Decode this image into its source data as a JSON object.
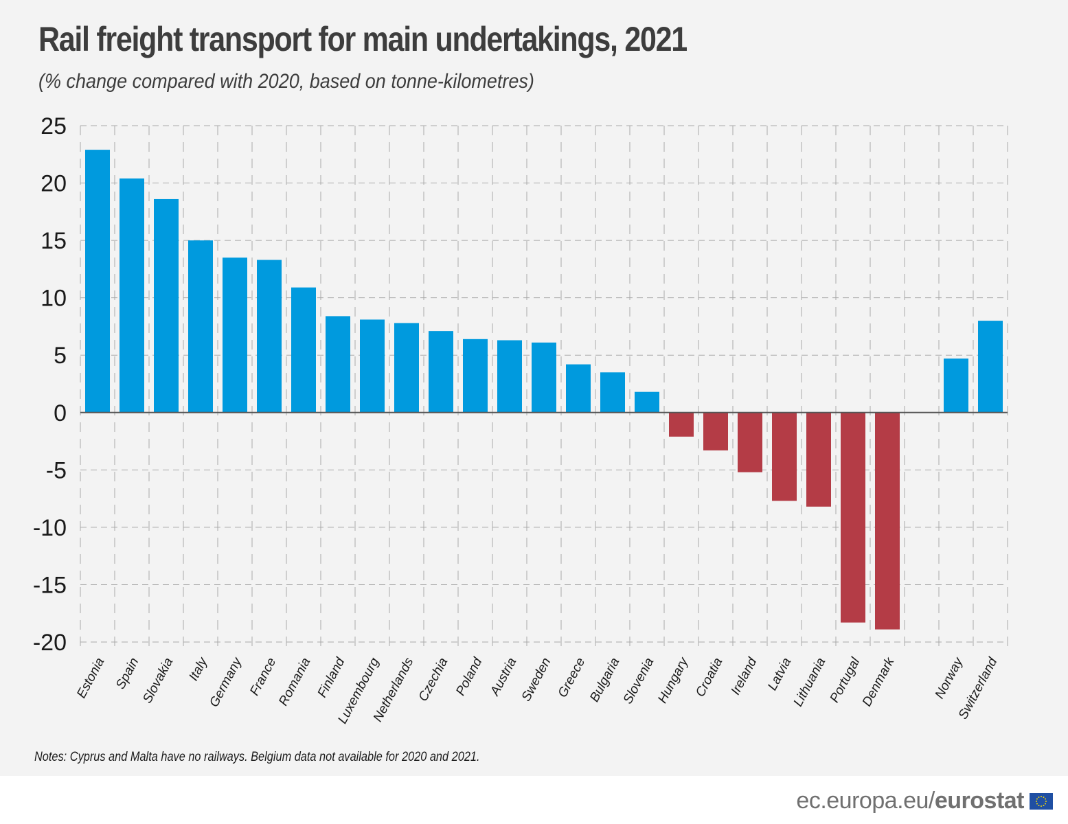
{
  "header": {
    "title": "Rail freight transport for main undertakings, 2021",
    "subtitle": "(% change compared with 2020, based on tonne-kilometres)"
  },
  "notes": "Notes: Cyprus and Malta have no railways. Belgium data not available for 2020 and 2021.",
  "footer": {
    "prefix": "ec.europa.eu/",
    "brand": "eurostat",
    "logo_icon": "eu-flag-icon"
  },
  "colors": {
    "positive": "#009ade",
    "negative": "#b43c46",
    "grid": "#a8a8a8",
    "axis": "#555555"
  },
  "chart_data": {
    "type": "bar",
    "title": "Rail freight transport for main undertakings, 2021",
    "subtitle": "(% change compared with 2020, based on tonne-kilometres)",
    "xlabel": "",
    "ylabel": "",
    "ylim": [
      -20,
      25
    ],
    "yticks": [
      25,
      20,
      15,
      10,
      5,
      0,
      -5,
      -10,
      -15,
      -20
    ],
    "grid": true,
    "legend": "none",
    "categories": [
      "Estonia",
      "Spain",
      "Slovakia",
      "Italy",
      "Germany",
      "France",
      "Romania",
      "Finland",
      "Luxembourg",
      "Netherlands",
      "Czechia",
      "Poland",
      "Austria",
      "Sweden",
      "Greece",
      "Bulgaria",
      "Slovenia",
      "Hungary",
      "Croatia",
      "Ireland",
      "Latvia",
      "Lithuania",
      "Portugal",
      "Denmark",
      "",
      "Norway",
      "Switzerland"
    ],
    "values": [
      22.9,
      20.4,
      18.6,
      15.0,
      13.5,
      13.3,
      10.9,
      8.4,
      8.1,
      7.8,
      7.1,
      6.4,
      6.3,
      6.1,
      4.2,
      3.5,
      1.8,
      -2.1,
      -3.3,
      -5.2,
      -7.7,
      -8.2,
      -18.3,
      -18.9,
      null,
      4.7,
      8.0
    ]
  }
}
